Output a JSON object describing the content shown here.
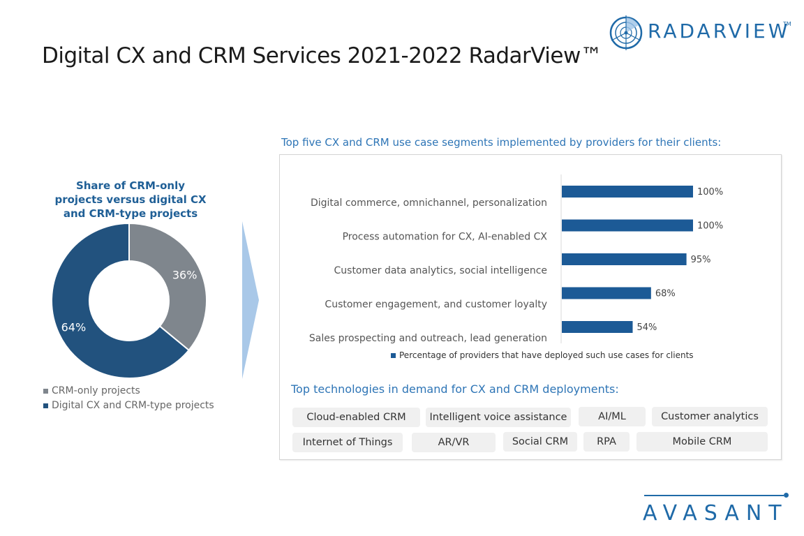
{
  "header": {
    "title": "Digital CX and CRM Services 2021-2022 RadarView™",
    "logo_text": "RADARVIEW",
    "logo_tm": "TM"
  },
  "footer": {
    "brand": "AVASANT"
  },
  "colors": {
    "primary_blue": "#1f4e79",
    "bar_blue": "#1c5a96",
    "grey": "#7f868d",
    "accent": "#2e75b6",
    "chevron": "#a9c8e8"
  },
  "chart_data": [
    {
      "type": "pie",
      "title": "Share of CRM-only projects versus digital CX and CRM-type projects",
      "title_lines": [
        "Share of CRM-only",
        "projects versus digital CX",
        "and CRM-type projects"
      ],
      "labels": [
        "CRM-only projects",
        "Digital CX and CRM-type projects"
      ],
      "values": [
        36,
        64
      ],
      "value_labels": [
        "36%",
        "64%"
      ],
      "colors": [
        "#7f868d",
        "#22527e"
      ],
      "donut": true,
      "legend": "bottom-left"
    },
    {
      "type": "bar",
      "orientation": "horizontal",
      "title": "Top five CX and CRM use case segments implemented by providers for their clients:",
      "categories": [
        "Digital commerce, omnichannel,  personalization",
        "Process automation for CX,  AI-enabled CX",
        "Customer data analytics, social intelligence",
        "Customer engagement, and customer loyalty",
        "Sales prospecting and outreach, lead generation"
      ],
      "series": [
        {
          "name": "Percentage of providers that have deployed such use cases for clients",
          "values": [
            100,
            100,
            95,
            68,
            54
          ]
        }
      ],
      "value_labels": [
        "100%",
        "100%",
        "95%",
        "68%",
        "54%"
      ],
      "xlim": [
        0,
        100
      ],
      "grid": false,
      "legend": "bottom"
    }
  ],
  "technologies": {
    "heading": "Top technologies in demand for CX and CRM deployments:",
    "row1": [
      "Cloud-enabled CRM",
      "Intelligent voice assistance",
      "AI/ML",
      "Customer analytics"
    ],
    "row2": [
      "Internet of Things",
      "AR/VR",
      "Social CRM",
      "RPA",
      "Mobile CRM"
    ]
  }
}
